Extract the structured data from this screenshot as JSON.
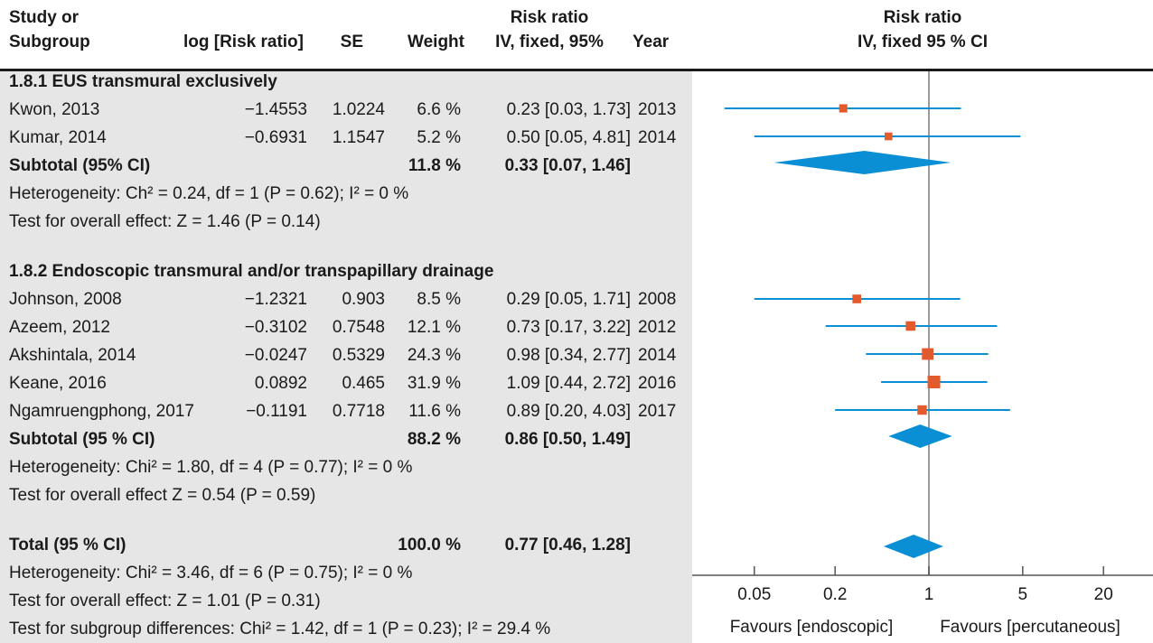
{
  "headers": {
    "study_line1": "Study or",
    "study_line2": "Subgroup",
    "logrr": "log [Risk ratio]",
    "se": "SE",
    "weight": "Weight",
    "rr_line1": "Risk ratio",
    "rr_line2": "IV, fixed, 95%",
    "year": "Year",
    "plot_line1": "Risk ratio",
    "plot_line2": "IV, fixed 95 % CI"
  },
  "groups": [
    {
      "title": "1.8.1 EUS transmural exclusively",
      "studies": [
        {
          "name": "Kwon, 2013",
          "logrr": "−1.4553",
          "se": "1.0224",
          "weight": "6.6 %",
          "ci": "0.23 [0.03, 1.73]",
          "year": "2013"
        },
        {
          "name": "Kumar, 2014",
          "logrr": "−0.6931",
          "se": "1.1547",
          "weight": "5.2 %",
          "ci": "0.50 [0.05, 4.81]",
          "year": "2014"
        }
      ],
      "subtotal": {
        "label": "Subtotal (95% CI)",
        "weight": "11.8 %",
        "ci": "0.33 [0.07, 1.46]"
      },
      "heterogeneity": "Heterogeneity: Ch² = 0.24, df = 1 (P = 0.62); I² = 0 %",
      "overall": "Test for overall effect: Z = 1.46 (P = 0.14)"
    },
    {
      "title": "1.8.2 Endoscopic transmural and/or transpapillary drainage",
      "studies": [
        {
          "name": "Johnson, 2008",
          "logrr": "−1.2321",
          "se": "0.903",
          "weight": "8.5 %",
          "ci": "0.29 [0.05, 1.71]",
          "year": "2008"
        },
        {
          "name": "Azeem, 2012",
          "logrr": "−0.3102",
          "se": "0.7548",
          "weight": "12.1 %",
          "ci": "0.73 [0.17, 3.22]",
          "year": "2012"
        },
        {
          "name": "Akshintala, 2014",
          "logrr": "−0.0247",
          "se": "0.5329",
          "weight": "24.3 %",
          "ci": "0.98 [0.34, 2.77]",
          "year": "2014"
        },
        {
          "name": "Keane, 2016",
          "logrr": "0.0892",
          "se": "0.465",
          "weight": "31.9 %",
          "ci": "1.09 [0.44, 2.72]",
          "year": "2016"
        },
        {
          "name": "Ngamruengphong, 2017",
          "logrr": "−0.1191",
          "se": "0.7718",
          "weight": "11.6 %",
          "ci": "0.89 [0.20, 4.03]",
          "year": "2017"
        }
      ],
      "subtotal": {
        "label": "Subtotal (95 % CI)",
        "weight": "88.2 %",
        "ci": "0.86 [0.50, 1.49]"
      },
      "heterogeneity": "Heterogeneity: Chi² = 1.80, df = 4 (P = 0.77); I² = 0 %",
      "overall": "Test for overall effect Z = 0.54 (P = 0.59)"
    }
  ],
  "total": {
    "label": "Total (95 % CI)",
    "weight": "100.0 %",
    "ci": "0.77 [0.46, 1.28]",
    "heterogeneity": "Heterogeneity: Chi² = 3.46, df = 6 (P = 0.75); I² = 0 %",
    "overall": "Test for overall effect: Z = 1.01 (P = 0.31)",
    "subgroup": "Test for subgroup differences: Chi² = 1.42, df = 1 (P = 0.23); I² = 29.4 %"
  },
  "chart_data": {
    "type": "forest",
    "scale": "log",
    "xlim": [
      0.03,
      25
    ],
    "ticks": [
      "0.05",
      "0.2",
      "1",
      "5",
      "20"
    ],
    "tick_values": [
      0.05,
      0.2,
      1,
      5,
      20
    ],
    "null_line": 1,
    "label_left": "Favours [endoscopic]",
    "label_right": "Favours [percutaneous]",
    "colors": {
      "ci_line": "#0a8fd4",
      "square": "#e35b2d",
      "diamond": "#0a8fd4",
      "null_line": "#9b9b9b",
      "axis": "#555555"
    },
    "studies": [
      {
        "name": "Kwon, 2013",
        "rr": 0.23,
        "lo": 0.03,
        "hi": 1.73,
        "weight": 6.6
      },
      {
        "name": "Kumar, 2014",
        "rr": 0.5,
        "lo": 0.05,
        "hi": 4.81,
        "weight": 5.2
      },
      {
        "name": "Johnson, 2008",
        "rr": 0.29,
        "lo": 0.05,
        "hi": 1.71,
        "weight": 8.5
      },
      {
        "name": "Azeem, 2012",
        "rr": 0.73,
        "lo": 0.17,
        "hi": 3.22,
        "weight": 12.1
      },
      {
        "name": "Akshintala, 2014",
        "rr": 0.98,
        "lo": 0.34,
        "hi": 2.77,
        "weight": 24.3
      },
      {
        "name": "Keane, 2016",
        "rr": 1.09,
        "lo": 0.44,
        "hi": 2.72,
        "weight": 31.9
      },
      {
        "name": "Ngamruengphong, 2017",
        "rr": 0.89,
        "lo": 0.2,
        "hi": 4.03,
        "weight": 11.6
      }
    ],
    "diamonds": [
      {
        "name": "Subtotal 1.8.1",
        "rr": 0.33,
        "lo": 0.07,
        "hi": 1.46
      },
      {
        "name": "Subtotal 1.8.2",
        "rr": 0.86,
        "lo": 0.5,
        "hi": 1.49
      },
      {
        "name": "Total",
        "rr": 0.77,
        "lo": 0.46,
        "hi": 1.28
      }
    ]
  }
}
